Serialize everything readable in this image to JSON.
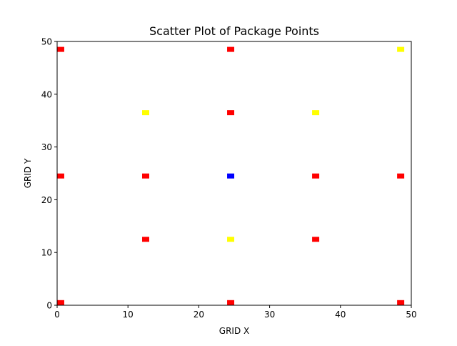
{
  "chart_data": {
    "type": "scatter",
    "title": "Scatter Plot of Package Points",
    "xlabel": "GRID X",
    "ylabel": "GRID Y",
    "xlim": [
      0,
      50
    ],
    "ylim": [
      0,
      50
    ],
    "xticks": [
      0,
      10,
      20,
      30,
      40,
      50
    ],
    "yticks": [
      0,
      10,
      20,
      30,
      40,
      50
    ],
    "grid": false,
    "marker": "square",
    "series": [
      {
        "color": "#ff0000",
        "points": [
          [
            0.5,
            0.5
          ],
          [
            24.5,
            0.5
          ],
          [
            48.5,
            0.5
          ],
          [
            12.5,
            12.5
          ],
          [
            36.5,
            12.5
          ],
          [
            0.5,
            24.5
          ],
          [
            12.5,
            24.5
          ],
          [
            36.5,
            24.5
          ],
          [
            48.5,
            24.5
          ],
          [
            24.5,
            36.5
          ],
          [
            0.5,
            48.5
          ],
          [
            24.5,
            48.5
          ]
        ]
      },
      {
        "color": "#ffff00",
        "points": [
          [
            24.5,
            12.5
          ],
          [
            12.5,
            36.5
          ],
          [
            36.5,
            36.5
          ],
          [
            48.5,
            48.5
          ]
        ]
      },
      {
        "color": "#0000ff",
        "points": [
          [
            24.5,
            24.5
          ]
        ]
      }
    ]
  }
}
